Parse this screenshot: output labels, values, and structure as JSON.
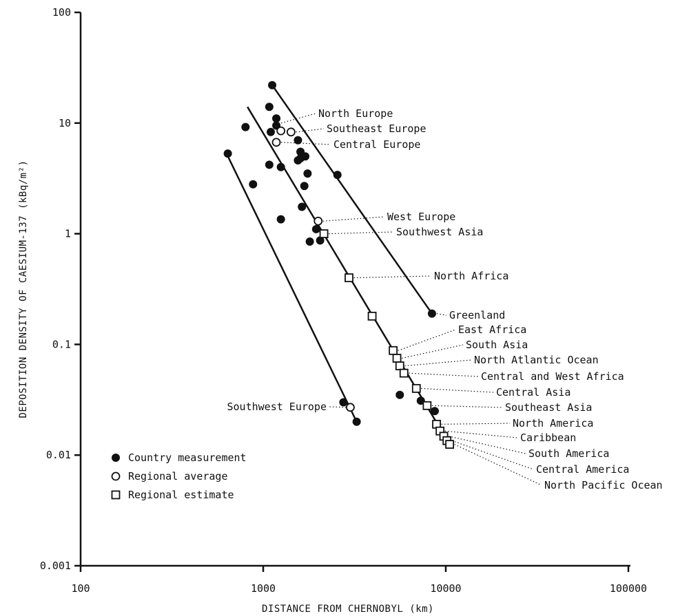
{
  "chart_data": {
    "type": "scatter",
    "title": "",
    "xlabel": "DISTANCE FROM CHERNOBYL (km)",
    "ylabel": "DEPOSITION DENSITY OF CAESIUM-137 (kBq/m²)",
    "x_scale": "log",
    "y_scale": "log",
    "xlim": [
      100,
      100000
    ],
    "ylim": [
      0.001,
      100
    ],
    "x_ticks": [
      "100",
      "1000",
      "10000",
      "100000"
    ],
    "y_ticks": [
      "100",
      "10",
      "1",
      "0.1",
      "0.01",
      "0.001"
    ],
    "grid": false,
    "legend_position": "bottom-left",
    "legend": [
      {
        "marker": "filled-circle",
        "label": "Country measurement"
      },
      {
        "marker": "open-circle",
        "label": "Regional average"
      },
      {
        "marker": "open-square",
        "label": "Regional estimate"
      }
    ],
    "series": [
      {
        "marker": "filled-circle",
        "points": [
          [
            1120,
            22
          ],
          [
            1080,
            14
          ],
          [
            1180,
            11
          ],
          [
            1180,
            9.5
          ],
          [
            1100,
            8.3
          ],
          [
            800,
            9.2
          ],
          [
            1550,
            7
          ],
          [
            1600,
            5.5
          ],
          [
            1550,
            4.6
          ],
          [
            1700,
            5
          ],
          [
            1600,
            4.8
          ],
          [
            1080,
            4.2
          ],
          [
            1250,
            4
          ],
          [
            1750,
            3.5
          ],
          [
            880,
            2.8
          ],
          [
            1680,
            2.7
          ],
          [
            2550,
            3.4
          ],
          [
            1630,
            1.75
          ],
          [
            1250,
            1.35
          ],
          [
            1950,
            1.1
          ],
          [
            1800,
            0.85
          ],
          [
            2050,
            0.87
          ],
          [
            640,
            5.3
          ],
          [
            8400,
            0.19
          ],
          [
            5600,
            0.035
          ],
          [
            7300,
            0.031
          ],
          [
            8700,
            0.025
          ],
          [
            2750,
            0.03
          ],
          [
            3250,
            0.02
          ]
        ]
      },
      {
        "marker": "open-circle",
        "points": [
          [
            1250,
            8.5
          ],
          [
            1420,
            8.3
          ],
          [
            1180,
            6.7
          ],
          [
            2000,
            1.3
          ],
          [
            3000,
            0.027
          ]
        ]
      },
      {
        "marker": "open-square",
        "points": [
          [
            2150,
            1.0
          ],
          [
            2950,
            0.4
          ],
          [
            3950,
            0.18
          ],
          [
            5150,
            0.088
          ],
          [
            5400,
            0.075
          ],
          [
            5600,
            0.064
          ],
          [
            5900,
            0.055
          ],
          [
            6900,
            0.04
          ],
          [
            7900,
            0.028
          ],
          [
            8900,
            0.019
          ],
          [
            9300,
            0.0165
          ],
          [
            9750,
            0.0148
          ],
          [
            10150,
            0.0135
          ],
          [
            10500,
            0.0125
          ]
        ]
      }
    ],
    "fit_lines": [
      [
        [
          630,
          5.3
        ],
        [
          3250,
          0.02
        ]
      ],
      [
        [
          820,
          14
        ],
        [
          10500,
          0.0125
        ]
      ],
      [
        [
          1120,
          22
        ],
        [
          8400,
          0.19
        ]
      ]
    ],
    "annotations": [
      {
        "label": "North Europe",
        "point": [
          1180,
          10
        ]
      },
      {
        "label": "Southeast Europe",
        "point": [
          1420,
          8.3
        ]
      },
      {
        "label": "Central Europe",
        "point": [
          1180,
          6.7
        ]
      },
      {
        "label": "West Europe",
        "point": [
          2000,
          1.3
        ]
      },
      {
        "label": "Southwest Asia",
        "point": [
          2150,
          1.0
        ]
      },
      {
        "label": "North Africa",
        "point": [
          2950,
          0.4
        ]
      },
      {
        "label": "Greenland",
        "point": [
          8400,
          0.19
        ]
      },
      {
        "label": "East Africa",
        "point": [
          5150,
          0.088
        ]
      },
      {
        "label": "South Asia",
        "point": [
          5400,
          0.075
        ]
      },
      {
        "label": "North Atlantic Ocean",
        "point": [
          5600,
          0.064
        ]
      },
      {
        "label": "Central and West Africa",
        "point": [
          5900,
          0.055
        ]
      },
      {
        "label": "Central Asia",
        "point": [
          6900,
          0.04
        ]
      },
      {
        "label": "Southeast Asia",
        "point": [
          7900,
          0.028
        ]
      },
      {
        "label": "North America",
        "point": [
          8900,
          0.019
        ]
      },
      {
        "label": "Caribbean",
        "point": [
          9300,
          0.0165
        ]
      },
      {
        "label": "South America",
        "point": [
          9750,
          0.0148
        ]
      },
      {
        "label": "Central America",
        "point": [
          10150,
          0.0135
        ]
      },
      {
        "label": "North Pacific Ocean",
        "point": [
          10500,
          0.0125
        ]
      },
      {
        "label": "Southwest Europe",
        "point": [
          3000,
          0.027
        ]
      }
    ]
  }
}
